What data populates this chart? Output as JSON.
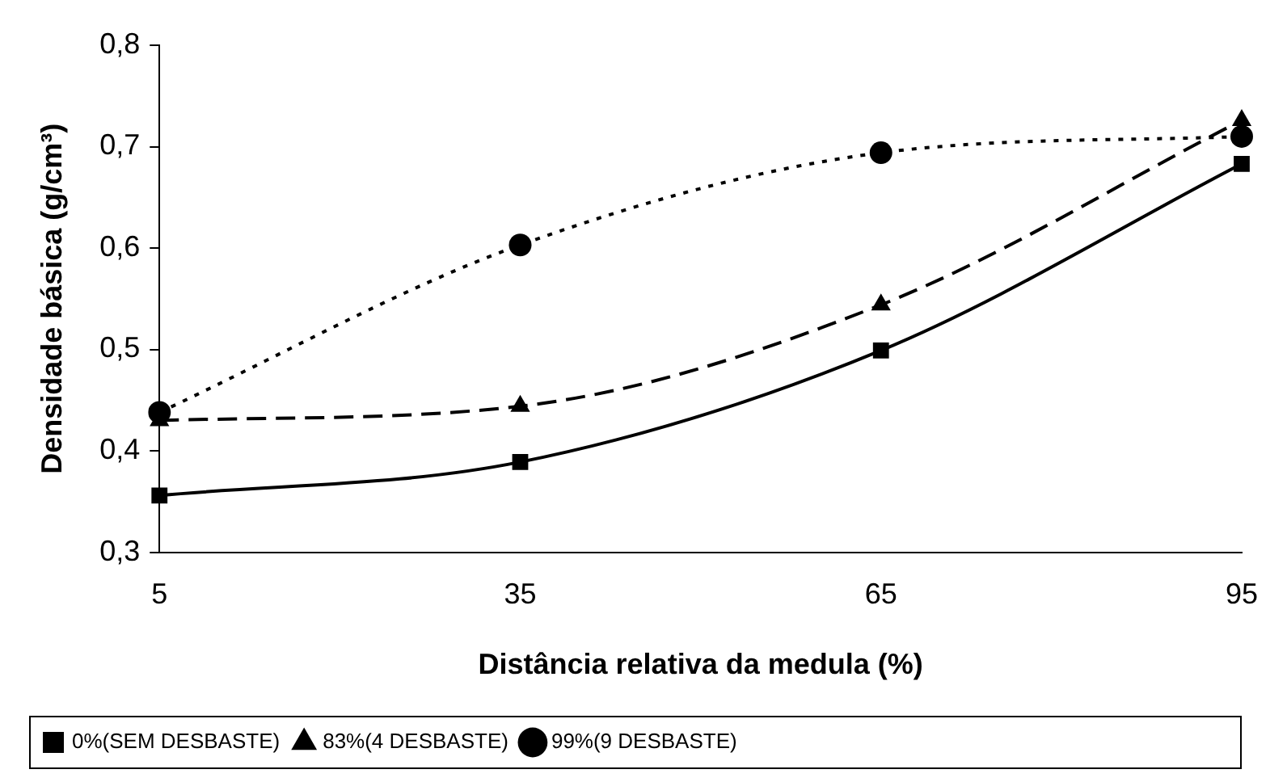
{
  "chart_data": {
    "type": "line",
    "xlabel": "Distância relativa da medula (%)",
    "ylabel": "Densidade básica (g/cm³)",
    "categories": [
      "5",
      "35",
      "65",
      "95"
    ],
    "series": [
      {
        "name": "0%(SEM DESBASTE)",
        "color": "#000000",
        "marker": "square",
        "line_style": "solid",
        "values": [
          0.356,
          0.389,
          0.499,
          0.683
        ]
      },
      {
        "name": "83%(4 DESBASTE)",
        "color": "#000000",
        "marker": "triangle",
        "line_style": "dashed",
        "values": [
          0.43,
          0.444,
          0.544,
          0.726
        ]
      },
      {
        "name": "99%(9 DESBASTE)",
        "color": "#000000",
        "marker": "circle",
        "line_style": "dotted",
        "values": [
          0.438,
          0.603,
          0.694,
          0.71
        ]
      }
    ],
    "ylim": [
      0.3,
      0.8
    ],
    "yticks": [
      {
        "value": 0.3,
        "label": "0,3"
      },
      {
        "value": 0.4,
        "label": "0,4"
      },
      {
        "value": 0.5,
        "label": "0,5"
      },
      {
        "value": 0.6,
        "label": "0,6"
      },
      {
        "value": 0.7,
        "label": "0,7"
      },
      {
        "value": 0.8,
        "label": "0,8"
      }
    ],
    "grid": false,
    "legend": "bottom"
  }
}
